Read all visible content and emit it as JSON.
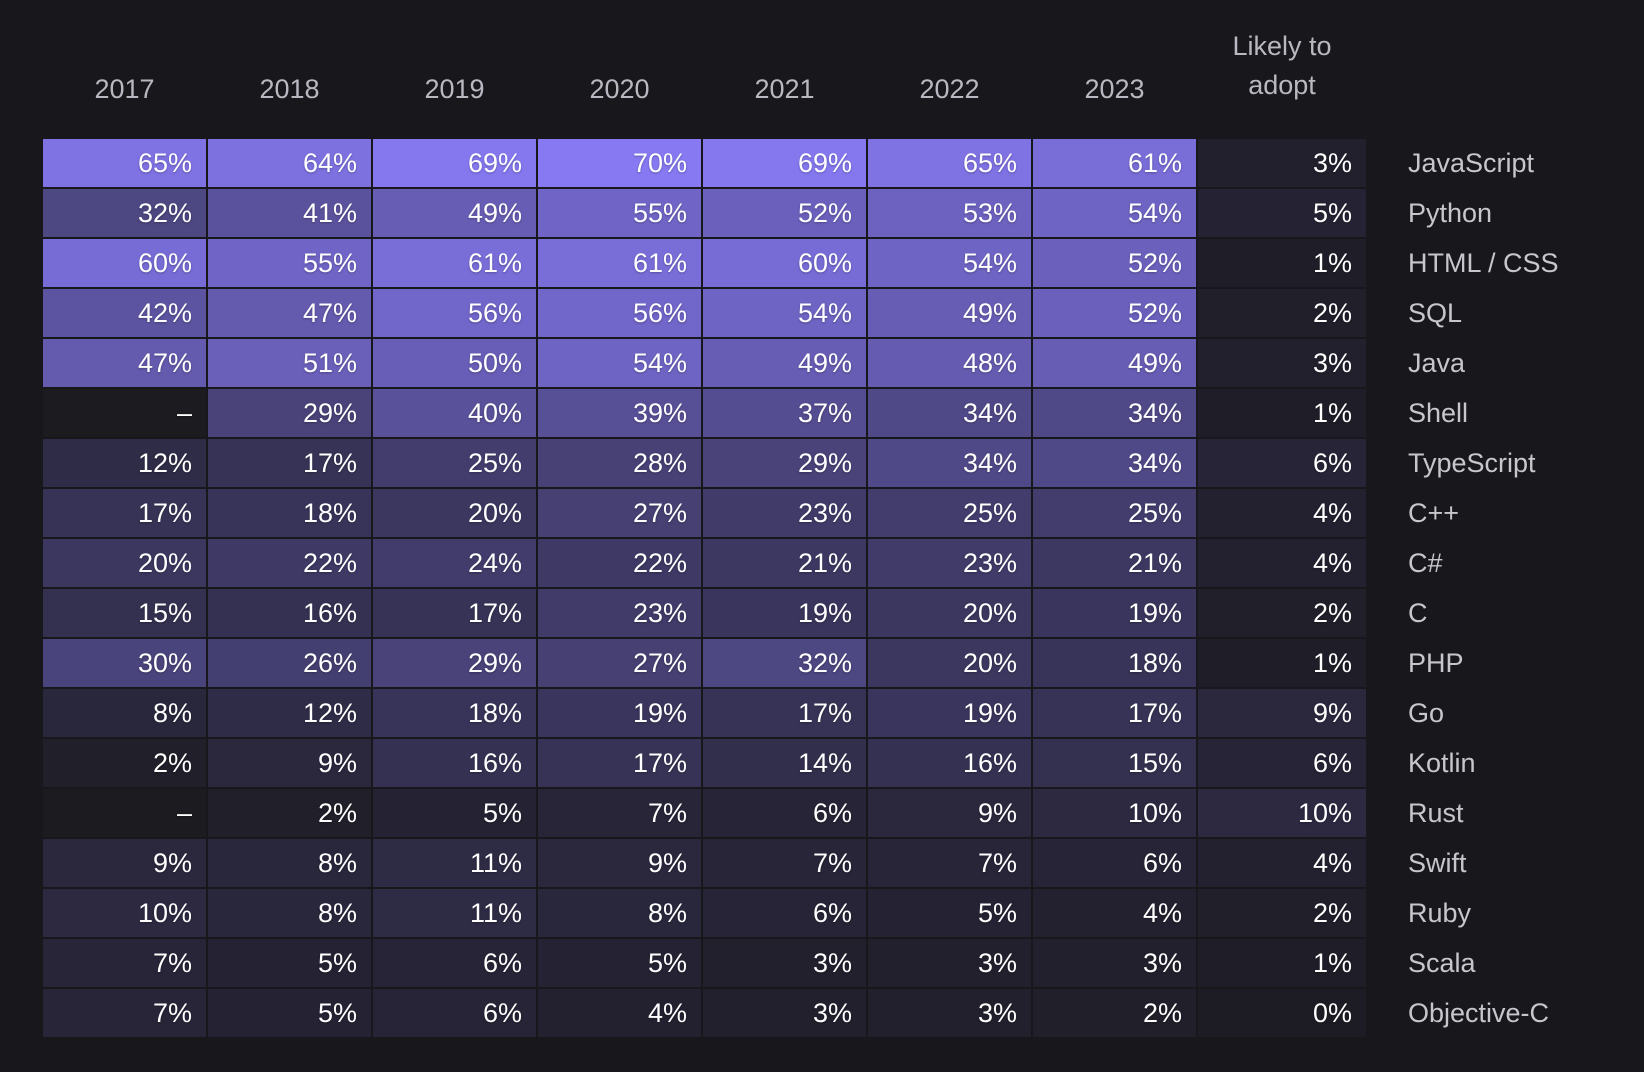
{
  "header": {
    "likely_line1": "Likely to",
    "likely_line2": "adopt"
  },
  "colors": {
    "page_background": "#18171c",
    "empty_cell": "#1c1b20",
    "header_text": "#b9b8c0",
    "label_text": "#c7c6cc",
    "value_text": "#ffffff"
  },
  "chart_data": {
    "type": "heatmap",
    "title": "",
    "columns": [
      "2017",
      "2018",
      "2019",
      "2020",
      "2021",
      "2022",
      "2023",
      "Likely to adopt"
    ],
    "value_unit": "%",
    "missing_marker": "–",
    "legend_position": "none",
    "grid": false,
    "color_scale": {
      "min_value": 0,
      "max_value": 70,
      "min_color": "#1d1c24",
      "max_color": "#8679f2"
    },
    "rows": [
      {
        "label": "JavaScript",
        "values": [
          65,
          64,
          69,
          70,
          69,
          65,
          61
        ],
        "likely_to_adopt": 3
      },
      {
        "label": "Python",
        "values": [
          32,
          41,
          49,
          55,
          52,
          53,
          54
        ],
        "likely_to_adopt": 5
      },
      {
        "label": "HTML / CSS",
        "values": [
          60,
          55,
          61,
          61,
          60,
          54,
          52
        ],
        "likely_to_adopt": 1
      },
      {
        "label": "SQL",
        "values": [
          42,
          47,
          56,
          56,
          54,
          49,
          52
        ],
        "likely_to_adopt": 2
      },
      {
        "label": "Java",
        "values": [
          47,
          51,
          50,
          54,
          49,
          48,
          49
        ],
        "likely_to_adopt": 3
      },
      {
        "label": "Shell",
        "values": [
          null,
          29,
          40,
          39,
          37,
          34,
          34
        ],
        "likely_to_adopt": 1
      },
      {
        "label": "TypeScript",
        "values": [
          12,
          17,
          25,
          28,
          29,
          34,
          34
        ],
        "likely_to_adopt": 6
      },
      {
        "label": "C++",
        "values": [
          17,
          18,
          20,
          27,
          23,
          25,
          25
        ],
        "likely_to_adopt": 4
      },
      {
        "label": "C#",
        "values": [
          20,
          22,
          24,
          22,
          21,
          23,
          21
        ],
        "likely_to_adopt": 4
      },
      {
        "label": "C",
        "values": [
          15,
          16,
          17,
          23,
          19,
          20,
          19
        ],
        "likely_to_adopt": 2
      },
      {
        "label": "PHP",
        "values": [
          30,
          26,
          29,
          27,
          32,
          20,
          18
        ],
        "likely_to_adopt": 1
      },
      {
        "label": "Go",
        "values": [
          8,
          12,
          18,
          19,
          17,
          19,
          17
        ],
        "likely_to_adopt": 9
      },
      {
        "label": "Kotlin",
        "values": [
          2,
          9,
          16,
          17,
          14,
          16,
          15
        ],
        "likely_to_adopt": 6
      },
      {
        "label": "Rust",
        "values": [
          null,
          2,
          5,
          7,
          6,
          9,
          10
        ],
        "likely_to_adopt": 10
      },
      {
        "label": "Swift",
        "values": [
          9,
          8,
          11,
          9,
          7,
          7,
          6
        ],
        "likely_to_adopt": 4
      },
      {
        "label": "Ruby",
        "values": [
          10,
          8,
          11,
          8,
          6,
          5,
          4
        ],
        "likely_to_adopt": 2
      },
      {
        "label": "Scala",
        "values": [
          7,
          5,
          6,
          5,
          3,
          3,
          3
        ],
        "likely_to_adopt": 1
      },
      {
        "label": "Objective-C",
        "values": [
          7,
          5,
          6,
          4,
          3,
          3,
          2
        ],
        "likely_to_adopt": 0
      }
    ]
  }
}
